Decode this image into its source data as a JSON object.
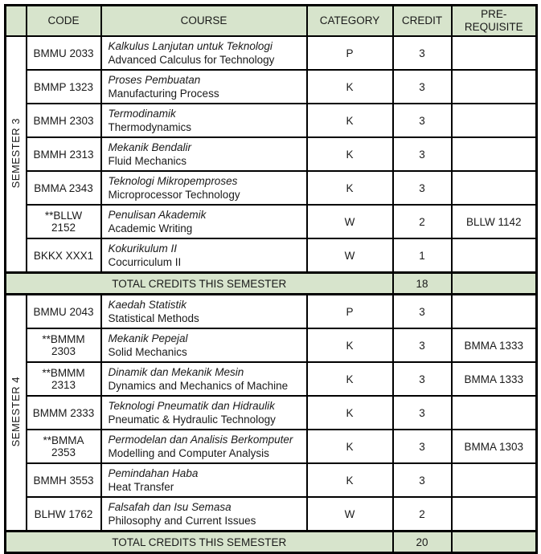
{
  "colors": {
    "header_bg": "#d7e4cc",
    "border": "#000000",
    "text": "#1a1a1a"
  },
  "table": {
    "headers": {
      "semester": "",
      "code": "CODE",
      "course": "COURSE",
      "category": "CATEGORY",
      "credit": "CREDIT",
      "prerequisite": "PRE-REQUISITE"
    },
    "semesters": [
      {
        "label": "SEMESTER 3",
        "total_label": "TOTAL CREDITS THIS SEMESTER",
        "total_credits": "18",
        "total_prerequisite": "",
        "rows": [
          {
            "code": "BMMU 2033",
            "name_ms": "Kalkulus Lanjutan untuk Teknologi",
            "name_en": "Advanced Calculus for Technology",
            "category": "P",
            "credit": "3",
            "prerequisite": ""
          },
          {
            "code": "BMMP 1323",
            "name_ms": "Proses Pembuatan",
            "name_en": "Manufacturing Process",
            "category": "K",
            "credit": "3",
            "prerequisite": ""
          },
          {
            "code": "BMMH 2303",
            "name_ms": "Termodinamik",
            "name_en": "Thermodynamics",
            "category": "K",
            "credit": "3",
            "prerequisite": ""
          },
          {
            "code": "BMMH 2313",
            "name_ms": "Mekanik Bendalir",
            "name_en": "Fluid Mechanics",
            "category": "K",
            "credit": "3",
            "prerequisite": ""
          },
          {
            "code": "BMMA 2343",
            "name_ms": "Teknologi Mikropemproses",
            "name_en": "Microprocessor Technology",
            "category": "K",
            "credit": "3",
            "prerequisite": ""
          },
          {
            "code": "**BLLW 2152",
            "name_ms": "Penulisan Akademik",
            "name_en": "Academic Writing",
            "category": "W",
            "credit": "2",
            "prerequisite": "BLLW 1142"
          },
          {
            "code": "BKKX XXX1",
            "name_ms": "Kokurikulum II",
            "name_en": "Cocurriculum II",
            "category": "W",
            "credit": "1",
            "prerequisite": ""
          }
        ]
      },
      {
        "label": "SEMESTER 4",
        "total_label": "TOTAL CREDITS THIS SEMESTER",
        "total_credits": "20",
        "total_prerequisite": "",
        "rows": [
          {
            "code": "BMMU 2043",
            "name_ms": "Kaedah Statistik",
            "name_en": "Statistical Methods",
            "category": "P",
            "credit": "3",
            "prerequisite": ""
          },
          {
            "code": "**BMMM 2303",
            "name_ms": "Mekanik Pepejal",
            "name_en": "Solid Mechanics",
            "category": "K",
            "credit": "3",
            "prerequisite": "BMMA 1333"
          },
          {
            "code": "**BMMM 2313",
            "name_ms": "Dinamik dan Mekanik Mesin",
            "name_en": "Dynamics and Mechanics of Machine",
            "category": "K",
            "credit": "3",
            "prerequisite": "BMMA 1333"
          },
          {
            "code": "BMMM 2333",
            "name_ms": "Teknologi Pneumatik dan Hidraulik",
            "name_en": "Pneumatic & Hydraulic Technology",
            "category": "K",
            "credit": "3",
            "prerequisite": ""
          },
          {
            "code": "**BMMA 2353",
            "name_ms": "Permodelan dan Analisis Berkomputer",
            "name_en": "Modelling and Computer Analysis",
            "category": "K",
            "credit": "3",
            "prerequisite": "BMMA 1303"
          },
          {
            "code": "BMMH 3553",
            "name_ms": "Pemindahan Haba",
            "name_en": "Heat Transfer",
            "category": "K",
            "credit": "3",
            "prerequisite": ""
          },
          {
            "code": "BLHW 1762",
            "name_ms": "Falsafah dan Isu Semasa",
            "name_en": "Philosophy and Current Issues",
            "category": "W",
            "credit": "2",
            "prerequisite": ""
          }
        ]
      }
    ]
  }
}
